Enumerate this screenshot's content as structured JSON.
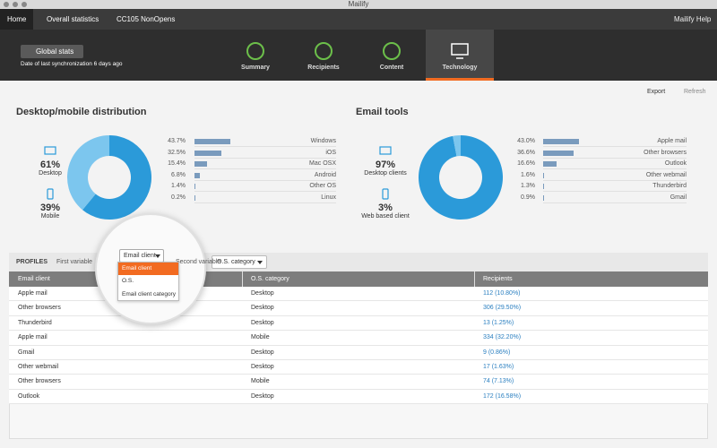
{
  "window": {
    "title": "Mailify"
  },
  "nav": {
    "breadcrumbs": [
      "Home",
      "Overall statistics",
      "CC105 NonOpens"
    ],
    "user": "Mailify Help"
  },
  "header": {
    "back_button": "Global stats",
    "sync": "Date of last synchronization 6 days ago",
    "tabs": [
      "Summary",
      "Recipients",
      "Content",
      "Technology"
    ],
    "active_tab": 3
  },
  "toolbar": {
    "export": "Export",
    "refresh": "Refresh"
  },
  "panels": [
    {
      "title": "Desktop/mobile distribution",
      "donut": [
        {
          "value": 61,
          "label": "61%",
          "name": "Desktop"
        },
        {
          "value": 39,
          "label": "39%",
          "name": "Mobile"
        }
      ],
      "bars": [
        {
          "value": 43.7,
          "label": "43.7%",
          "name": "Windows"
        },
        {
          "value": 32.5,
          "label": "32.5%",
          "name": "iOS"
        },
        {
          "value": 15.4,
          "label": "15.4%",
          "name": "Mac OSX"
        },
        {
          "value": 6.8,
          "label": "6.8%",
          "name": "Android"
        },
        {
          "value": 1.4,
          "label": "1.4%",
          "name": "Other OS"
        },
        {
          "value": 0.2,
          "label": "0.2%",
          "name": "Linux"
        }
      ]
    },
    {
      "title": "Email tools",
      "donut": [
        {
          "value": 97,
          "label": "97%",
          "name": "Desktop clients"
        },
        {
          "value": 3,
          "label": "3%",
          "name": "Web based client"
        }
      ],
      "bars": [
        {
          "value": 43.0,
          "label": "43.0%",
          "name": "Apple mail"
        },
        {
          "value": 36.6,
          "label": "36.6%",
          "name": "Other browsers"
        },
        {
          "value": 16.6,
          "label": "16.6%",
          "name": "Outlook"
        },
        {
          "value": 1.6,
          "label": "1.6%",
          "name": "Other webmail"
        },
        {
          "value": 1.3,
          "label": "1.3%",
          "name": "Thunderbird"
        },
        {
          "value": 0.9,
          "label": "0.9%",
          "name": "Gmail"
        }
      ]
    }
  ],
  "profiles": {
    "title": "PROFILES",
    "first_variable": "First variable",
    "first_value": "Email client",
    "options": [
      "Email client",
      "O.S.",
      "Email client category"
    ],
    "highlighted_option": 0,
    "second_variable": "Second variable",
    "second_value": "O.S. category",
    "columns": [
      "Email client",
      "O.S. category",
      "Recipients"
    ],
    "rows": [
      [
        "Apple mail",
        "Desktop",
        "112 (10.80%)"
      ],
      [
        "Other browsers",
        "Desktop",
        "306 (29.50%)"
      ],
      [
        "Thunderbird",
        "Desktop",
        "13 (1.25%)"
      ],
      [
        "Apple mail",
        "Mobile",
        "334 (32.20%)"
      ],
      [
        "Gmail",
        "Desktop",
        "9 (0.86%)"
      ],
      [
        "Other webmail",
        "Desktop",
        "17 (1.63%)"
      ],
      [
        "Other browsers",
        "Mobile",
        "74 (7.13%)"
      ],
      [
        "Outlook",
        "Desktop",
        "172 (16.58%)"
      ]
    ]
  }
}
